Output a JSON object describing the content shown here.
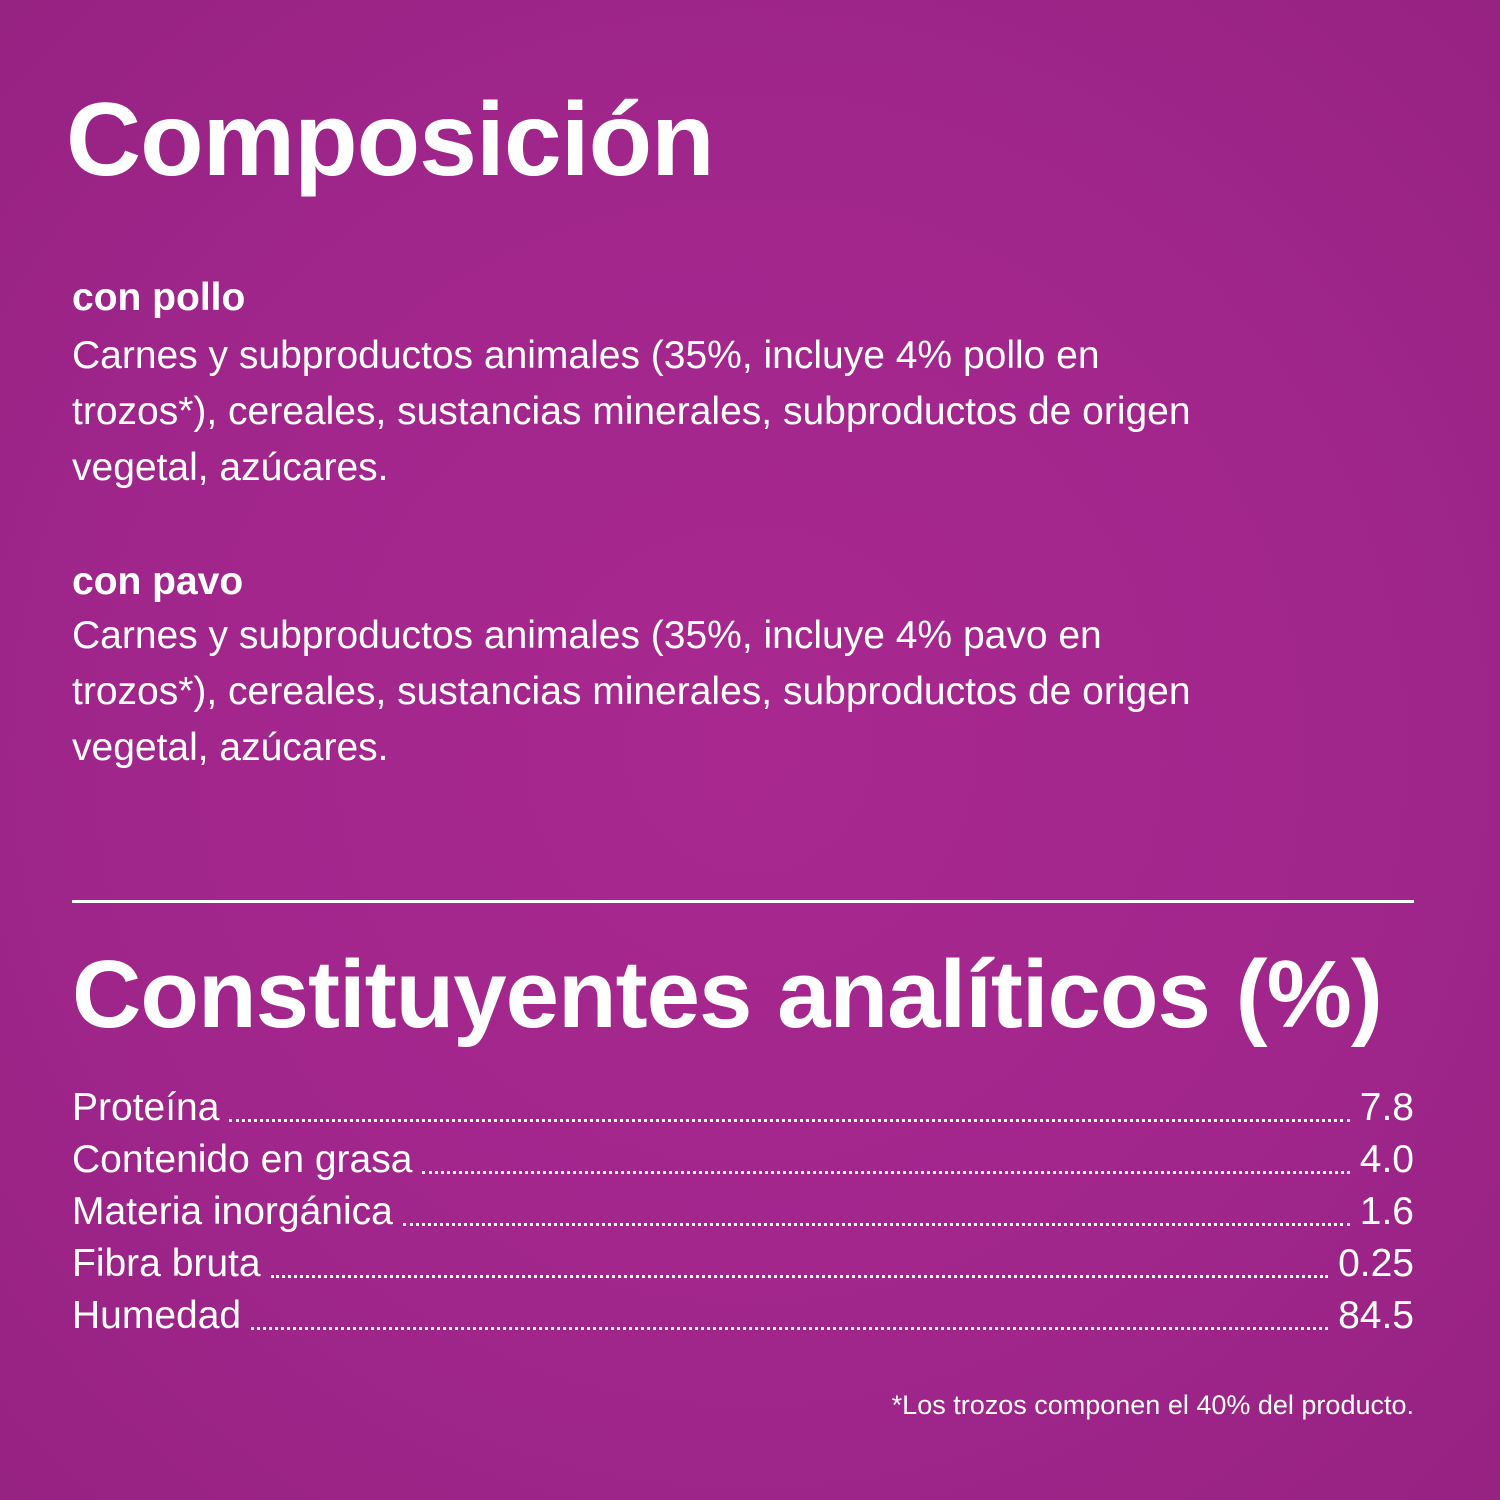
{
  "composition": {
    "title": "Composición",
    "variants": [
      {
        "heading": "con pollo",
        "text": "Carnes y subproductos animales (35%, incluye 4% pollo en trozos*), cereales, sustancias minerales, subproductos de origen vegetal, azúcares."
      },
      {
        "heading": "con pavo",
        "text": "Carnes y subproductos animales (35%, incluye 4% pavo en trozos*), cereales, sustancias minerales, subproductos de origen vegetal, azúcares."
      }
    ]
  },
  "analytical": {
    "title": "Constituyentes analíticos (%)",
    "rows": [
      {
        "label": "Proteína",
        "value": "7.8"
      },
      {
        "label": "Contenido en grasa",
        "value": "4.0"
      },
      {
        "label": "Materia inorgánica",
        "value": "1.6"
      },
      {
        "label": "Fibra bruta",
        "value": "0.25"
      },
      {
        "label": "Humedad",
        "value": "84.5"
      }
    ]
  },
  "footnote": "*Los trozos componen el 40% del producto.",
  "colors": {
    "background": "#a1268c",
    "text": "#ffffff"
  }
}
